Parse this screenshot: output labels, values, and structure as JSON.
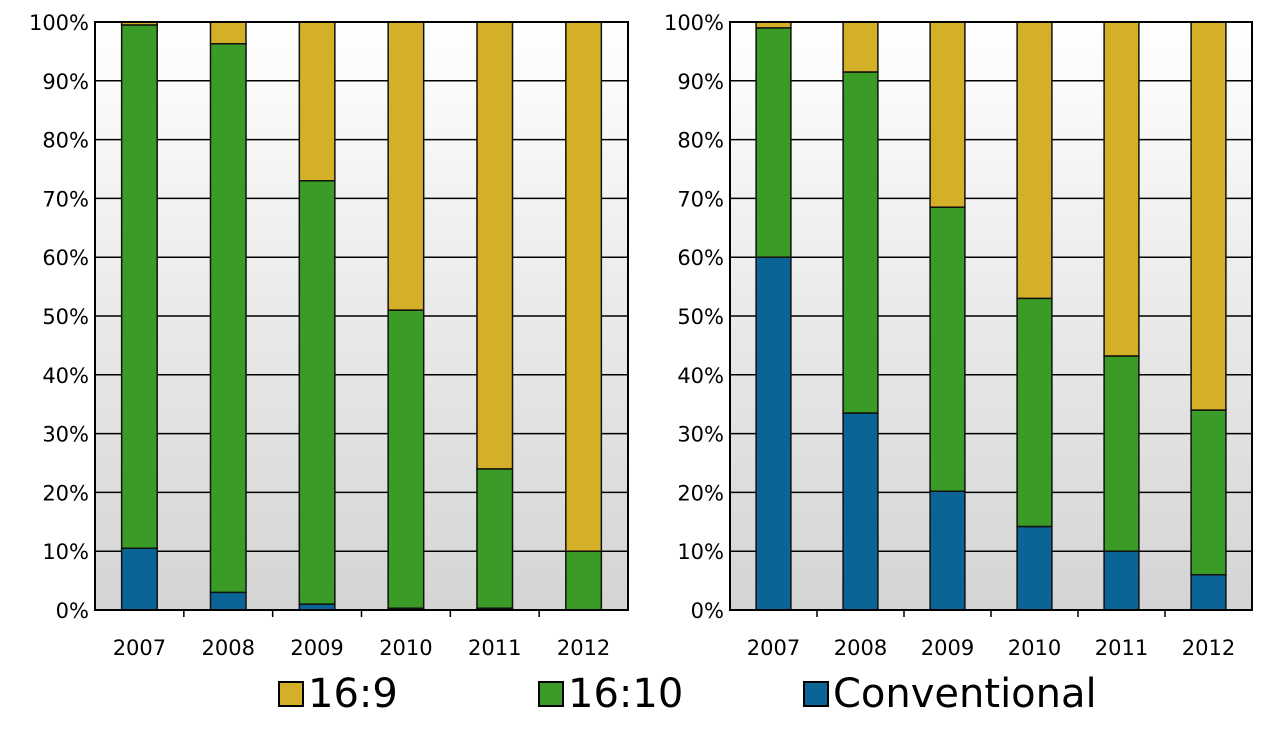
{
  "legend": [
    {
      "label": "16:9",
      "color": "#d4af28"
    },
    {
      "label": "16:10",
      "color": "#3a9b27"
    },
    {
      "label": "Conventional",
      "color": "#0a6496"
    }
  ],
  "chart_data": [
    {
      "type": "bar",
      "stacked": true,
      "categories": [
        "2007",
        "2008",
        "2009",
        "2010",
        "2011",
        "2012"
      ],
      "series": [
        {
          "name": "Conventional",
          "values": [
            10.5,
            3,
            1,
            0.3,
            0.3,
            0
          ]
        },
        {
          "name": "16:10",
          "values": [
            89,
            93.3,
            72,
            50.7,
            23.7,
            10
          ]
        },
        {
          "name": "16:9",
          "values": [
            0.5,
            3.7,
            27,
            49,
            76,
            90
          ]
        }
      ],
      "ylim": [
        0,
        100
      ],
      "yticks": [
        "0%",
        "10%",
        "20%",
        "30%",
        "40%",
        "50%",
        "60%",
        "70%",
        "80%",
        "90%",
        "100%"
      ],
      "grid": true
    },
    {
      "type": "bar",
      "stacked": true,
      "categories": [
        "2007",
        "2008",
        "2009",
        "2010",
        "2011",
        "2012"
      ],
      "series": [
        {
          "name": "Conventional",
          "values": [
            60,
            33.5,
            20.2,
            14.2,
            10,
            6
          ]
        },
        {
          "name": "16:10",
          "values": [
            39,
            58,
            48.3,
            38.8,
            33.2,
            28
          ]
        },
        {
          "name": "16:9",
          "values": [
            1,
            8.5,
            31.5,
            47,
            56.8,
            66
          ]
        }
      ],
      "ylim": [
        0,
        100
      ],
      "yticks": [
        "0%",
        "10%",
        "20%",
        "30%",
        "40%",
        "50%",
        "60%",
        "70%",
        "80%",
        "90%",
        "100%"
      ],
      "grid": true
    }
  ]
}
